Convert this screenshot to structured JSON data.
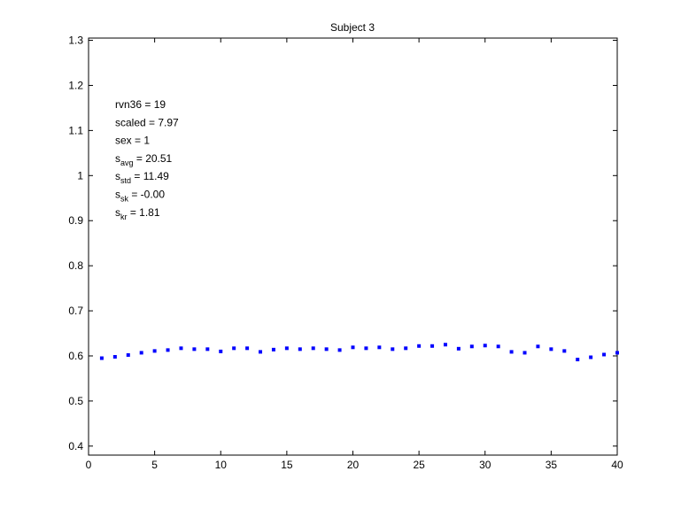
{
  "chart_data": {
    "type": "scatter",
    "title": "Subject 3",
    "xlabel": "",
    "ylabel": "",
    "xlim": [
      0,
      40
    ],
    "ylim": [
      0.38,
      1.305
    ],
    "xticks": [
      "0",
      "5",
      "10",
      "15",
      "20",
      "25",
      "30",
      "35",
      "40"
    ],
    "yticks": [
      "0.4",
      "0.5",
      "0.6",
      "0.7",
      "0.8",
      "0.9",
      "1",
      "1.1",
      "1.2",
      "1.3"
    ],
    "grid": false,
    "marker_color": "#0000ff",
    "annotations": [
      {
        "base": "rvn36 = 19",
        "sub": "",
        "tail": ""
      },
      {
        "base": "scaled = 7.97",
        "sub": "",
        "tail": ""
      },
      {
        "base": "sex   = 1",
        "sub": "",
        "tail": ""
      },
      {
        "base": "s",
        "sub": "avg",
        "tail": " = 20.51"
      },
      {
        "base": "s",
        "sub": "std",
        "tail": " = 11.49"
      },
      {
        "base": "s",
        "sub": "sk",
        "tail": " = -0.00"
      },
      {
        "base": "s",
        "sub": "kr",
        "tail": " = 1.81"
      }
    ],
    "series": [
      {
        "x": [
          1,
          2,
          3,
          4,
          5,
          6,
          7,
          8,
          9,
          10,
          11,
          12,
          13,
          14,
          15,
          16,
          17,
          18,
          19,
          20,
          21,
          22,
          23,
          24,
          25,
          26,
          27,
          28,
          29,
          30,
          31,
          32,
          33,
          34,
          35,
          36,
          37,
          38,
          39,
          40
        ],
        "y": [
          0.595,
          0.598,
          0.602,
          0.607,
          0.611,
          0.613,
          0.617,
          0.615,
          0.615,
          0.61,
          0.617,
          0.617,
          0.609,
          0.614,
          0.617,
          0.615,
          0.617,
          0.615,
          0.613,
          0.619,
          0.617,
          0.619,
          0.615,
          0.617,
          0.622,
          0.622,
          0.625,
          0.616,
          0.621,
          0.623,
          0.621,
          0.609,
          0.607,
          0.621,
          0.615,
          0.611,
          0.592,
          0.597,
          0.603,
          0.607
        ]
      }
    ]
  }
}
